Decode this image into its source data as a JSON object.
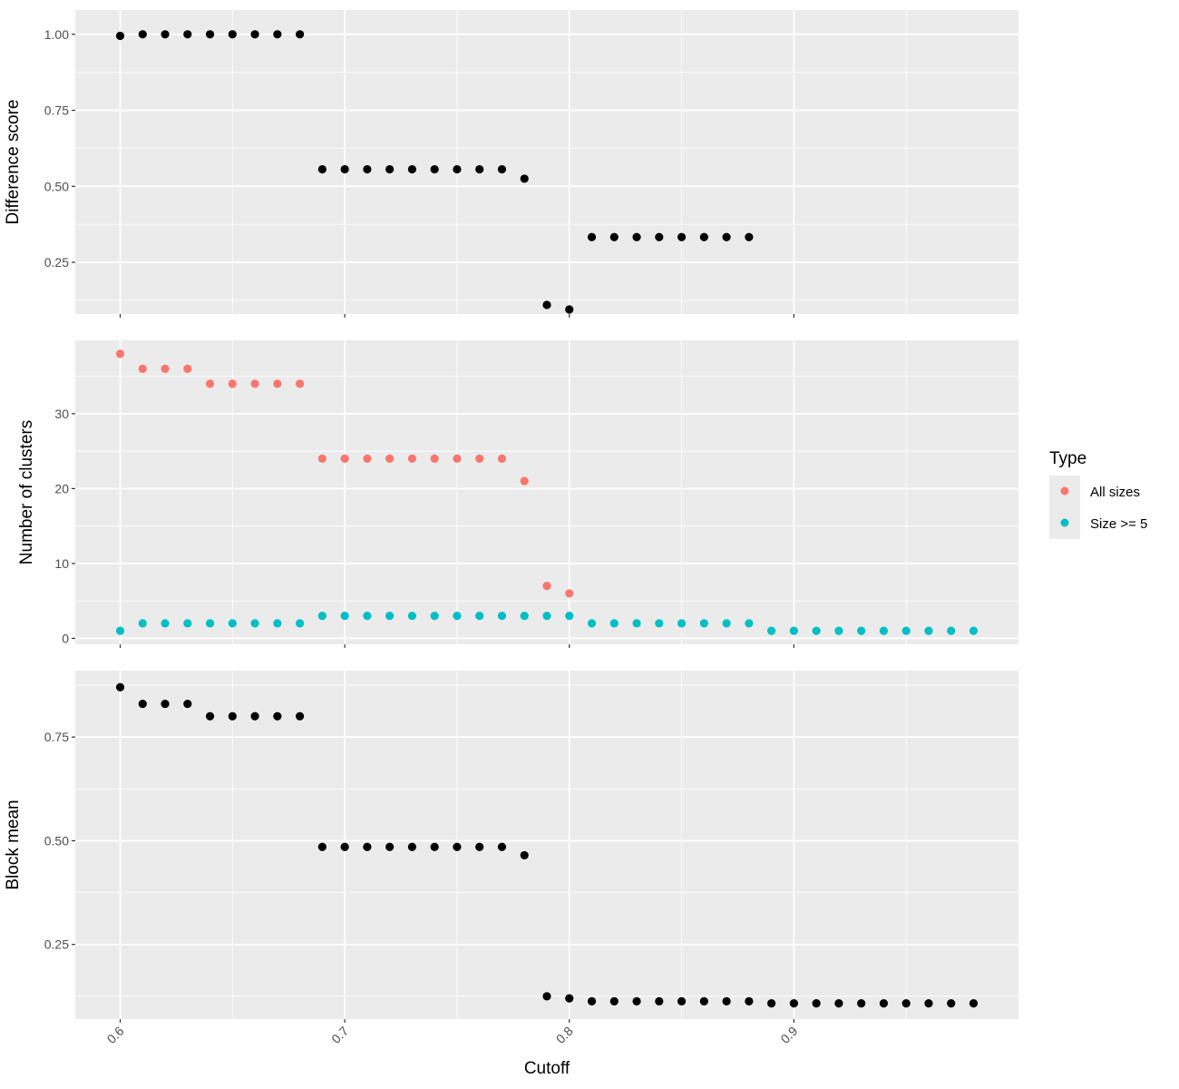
{
  "chart_data": {
    "type": "scatter",
    "xlabel": "Cutoff",
    "x_ticks": [
      "0.6",
      "0.7",
      "0.8",
      "0.9"
    ],
    "x_tick_values": [
      0.6,
      0.7,
      0.8,
      0.9
    ],
    "xlim": [
      0.58,
      1.0
    ],
    "grid": true,
    "legend": {
      "title": "Type",
      "placement": "right",
      "entries": [
        {
          "name": "All sizes",
          "color": "#F8766D"
        },
        {
          "name": "Size >= 5",
          "color": "#00BFC4"
        }
      ]
    },
    "panels": [
      {
        "ylabel": "Difference score",
        "ylim": [
          0.08,
          1.08
        ],
        "y_ticks": [
          "0.25",
          "0.50",
          "0.75",
          "1.00"
        ],
        "y_tick_values": [
          0.25,
          0.5,
          0.75,
          1.0
        ],
        "series": [
          {
            "color": "#000000",
            "x": [
              0.6,
              0.61,
              0.62,
              0.63,
              0.64,
              0.65,
              0.66,
              0.67,
              0.68,
              0.69,
              0.7,
              0.71,
              0.72,
              0.73,
              0.74,
              0.75,
              0.76,
              0.77,
              0.78,
              0.79,
              0.8,
              0.81,
              0.82,
              0.83,
              0.84,
              0.85,
              0.86,
              0.87,
              0.88
            ],
            "y": [
              0.995,
              1.0,
              1.0,
              1.0,
              1.0,
              1.0,
              1.0,
              1.0,
              1.0,
              0.556,
              0.556,
              0.556,
              0.556,
              0.556,
              0.556,
              0.556,
              0.556,
              0.556,
              0.525,
              0.11,
              0.095,
              0.333,
              0.333,
              0.333,
              0.333,
              0.333,
              0.333,
              0.333,
              0.333
            ]
          }
        ]
      },
      {
        "ylabel": "Number of clusters",
        "ylim": [
          -0.8,
          39.8
        ],
        "y_ticks": [
          "0",
          "10",
          "20",
          "30"
        ],
        "y_tick_values": [
          0,
          10,
          20,
          30
        ],
        "series": [
          {
            "name": "All sizes",
            "color": "#F8766D",
            "x": [
              0.6,
              0.61,
              0.62,
              0.63,
              0.64,
              0.65,
              0.66,
              0.67,
              0.68,
              0.69,
              0.7,
              0.71,
              0.72,
              0.73,
              0.74,
              0.75,
              0.76,
              0.77,
              0.78,
              0.79,
              0.8
            ],
            "y": [
              38,
              36,
              36,
              36,
              34,
              34,
              34,
              34,
              34,
              24,
              24,
              24,
              24,
              24,
              24,
              24,
              24,
              24,
              21,
              7,
              6
            ]
          },
          {
            "name": "Size >= 5",
            "color": "#00BFC4",
            "x": [
              0.6,
              0.61,
              0.62,
              0.63,
              0.64,
              0.65,
              0.66,
              0.67,
              0.68,
              0.69,
              0.7,
              0.71,
              0.72,
              0.73,
              0.74,
              0.75,
              0.76,
              0.77,
              0.78,
              0.79,
              0.8,
              0.81,
              0.82,
              0.83,
              0.84,
              0.85,
              0.86,
              0.87,
              0.88,
              0.89,
              0.9,
              0.91,
              0.92,
              0.93,
              0.94,
              0.95,
              0.96,
              0.97,
              0.98
            ],
            "y": [
              1,
              2,
              2,
              2,
              2,
              2,
              2,
              2,
              2,
              3,
              3,
              3,
              3,
              3,
              3,
              3,
              3,
              3,
              3,
              3,
              3,
              2,
              2,
              2,
              2,
              2,
              2,
              2,
              2,
              1,
              1,
              1,
              1,
              1,
              1,
              1,
              1,
              1,
              1
            ]
          }
        ]
      },
      {
        "ylabel": "Block mean",
        "ylim": [
          0.07,
          0.91
        ],
        "y_ticks": [
          "0.25",
          "0.50",
          "0.75"
        ],
        "y_tick_values": [
          0.25,
          0.5,
          0.75
        ],
        "series": [
          {
            "color": "#000000",
            "x": [
              0.6,
              0.61,
              0.62,
              0.63,
              0.64,
              0.65,
              0.66,
              0.67,
              0.68,
              0.69,
              0.7,
              0.71,
              0.72,
              0.73,
              0.74,
              0.75,
              0.76,
              0.77,
              0.78,
              0.79,
              0.8,
              0.81,
              0.82,
              0.83,
              0.84,
              0.85,
              0.86,
              0.87,
              0.88,
              0.89,
              0.9,
              0.91,
              0.92,
              0.93,
              0.94,
              0.95,
              0.96,
              0.97,
              0.98
            ],
            "y": [
              0.87,
              0.83,
              0.83,
              0.83,
              0.8,
              0.8,
              0.8,
              0.8,
              0.8,
              0.485,
              0.485,
              0.485,
              0.485,
              0.485,
              0.485,
              0.485,
              0.485,
              0.485,
              0.465,
              0.125,
              0.12,
              0.113,
              0.113,
              0.113,
              0.113,
              0.113,
              0.113,
              0.113,
              0.113,
              0.108,
              0.108,
              0.108,
              0.108,
              0.108,
              0.108,
              0.108,
              0.108,
              0.108,
              0.108
            ]
          }
        ]
      }
    ]
  }
}
